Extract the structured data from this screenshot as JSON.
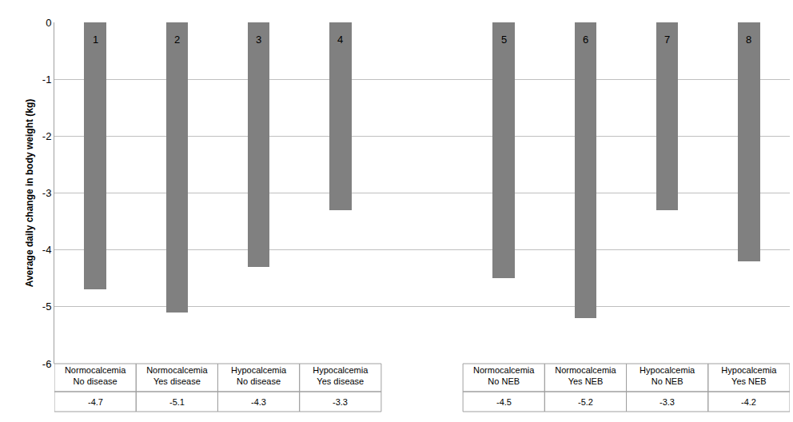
{
  "chart_data": {
    "type": "bar",
    "categories": [
      "Normocalcemia No disease",
      "Normocalcemia Yes disease",
      "Hypocalcemia No disease",
      "Hypocalcemia Yes disease",
      null,
      "Normocalcemia No NEB",
      "Normocalcemia Yes NEB",
      "Hypocalcemia No NEB",
      "Hypocalcemia Yes NEB"
    ],
    "values": [
      -4.7,
      -5.1,
      -4.3,
      -3.3,
      null,
      -4.5,
      -5.2,
      -3.3,
      -4.2
    ],
    "annotations": [
      "1",
      "2",
      "3",
      "4",
      null,
      "5",
      "6",
      "7",
      "8"
    ],
    "color": "#808080",
    "ylabel": "Average daily change in body weight (kg)",
    "ylim": [
      -6,
      0
    ],
    "yticks": [
      -6,
      -5,
      -4,
      -3,
      -2,
      -1,
      0
    ],
    "grid": true
  }
}
